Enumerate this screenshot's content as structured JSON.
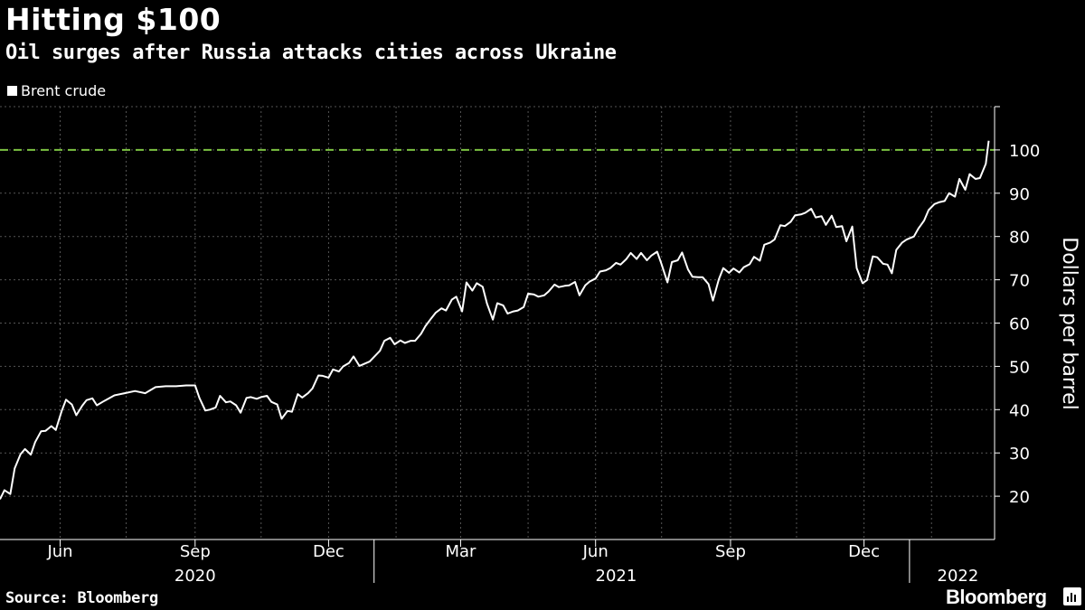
{
  "header": {
    "title": "Hitting $100",
    "subtitle": "Oil surges after Russia attacks cities across Ukraine"
  },
  "footer": {
    "source": "Source: Bloomberg",
    "brand": "Bloomberg"
  },
  "colors": {
    "background": "#000000",
    "line": "#ffffff",
    "reference_line": "#7cc242",
    "grid": "#555555"
  },
  "chart_data": {
    "type": "line",
    "title": "Hitting $100",
    "subtitle": "Oil surges after Russia attacks cities across Ukraine",
    "ylabel": "Dollars per barrel",
    "xlabel": "",
    "ylim": [
      10,
      110
    ],
    "xlim": [
      "2020-04-21",
      "2022-02-28"
    ],
    "y_ticks": [
      20,
      30,
      40,
      50,
      60,
      70,
      80,
      90,
      100
    ],
    "x_month_ticks": [
      {
        "label": "Jun",
        "date": "2020-06-01"
      },
      {
        "label": "Sep",
        "date": "2020-09-01"
      },
      {
        "label": "Dec",
        "date": "2020-12-01"
      },
      {
        "label": "Mar",
        "date": "2021-03-01"
      },
      {
        "label": "Jun",
        "date": "2021-06-01"
      },
      {
        "label": "Sep",
        "date": "2021-09-01"
      },
      {
        "label": "Dec",
        "date": "2021-12-01"
      }
    ],
    "x_year_labels": [
      {
        "label": "2020",
        "date": "2020-09-01"
      },
      {
        "label": "2021",
        "date": "2021-06-15"
      },
      {
        "label": "2022",
        "date": "2022-02-03"
      }
    ],
    "x_year_boundaries": [
      "2021-01-01",
      "2022-01-01"
    ],
    "grid": true,
    "legend_position": "top-left",
    "reference_lines": [
      {
        "y": 100,
        "style": "dashed"
      }
    ],
    "series": [
      {
        "name": "Brent crude",
        "points": [
          [
            "2020-04-21",
            19.3
          ],
          [
            "2020-04-24",
            21.4
          ],
          [
            "2020-04-28",
            20.5
          ],
          [
            "2020-05-01",
            26.4
          ],
          [
            "2020-05-05",
            29.7
          ],
          [
            "2020-05-08",
            30.9
          ],
          [
            "2020-05-12",
            29.6
          ],
          [
            "2020-05-15",
            32.5
          ],
          [
            "2020-05-19",
            35.0
          ],
          [
            "2020-05-22",
            35.1
          ],
          [
            "2020-05-26",
            36.2
          ],
          [
            "2020-05-29",
            35.3
          ],
          [
            "2020-06-02",
            39.6
          ],
          [
            "2020-06-05",
            42.3
          ],
          [
            "2020-06-09",
            41.2
          ],
          [
            "2020-06-12",
            38.7
          ],
          [
            "2020-06-16",
            40.9
          ],
          [
            "2020-06-19",
            42.2
          ],
          [
            "2020-06-23",
            42.6
          ],
          [
            "2020-06-26",
            41.0
          ],
          [
            "2020-07-01",
            42.0
          ],
          [
            "2020-07-08",
            43.3
          ],
          [
            "2020-07-15",
            43.8
          ],
          [
            "2020-07-22",
            44.3
          ],
          [
            "2020-07-29",
            43.8
          ],
          [
            "2020-08-05",
            45.2
          ],
          [
            "2020-08-12",
            45.4
          ],
          [
            "2020-08-19",
            45.4
          ],
          [
            "2020-08-26",
            45.6
          ],
          [
            "2020-09-01",
            45.6
          ],
          [
            "2020-09-04",
            42.7
          ],
          [
            "2020-09-08",
            39.8
          ],
          [
            "2020-09-11",
            40.0
          ],
          [
            "2020-09-15",
            40.5
          ],
          [
            "2020-09-18",
            43.2
          ],
          [
            "2020-09-22",
            41.7
          ],
          [
            "2020-09-25",
            41.9
          ],
          [
            "2020-09-29",
            41.0
          ],
          [
            "2020-10-02",
            39.3
          ],
          [
            "2020-10-06",
            42.7
          ],
          [
            "2020-10-09",
            42.9
          ],
          [
            "2020-10-13",
            42.5
          ],
          [
            "2020-10-16",
            42.9
          ],
          [
            "2020-10-20",
            43.2
          ],
          [
            "2020-10-23",
            41.8
          ],
          [
            "2020-10-27",
            41.2
          ],
          [
            "2020-10-30",
            37.9
          ],
          [
            "2020-11-03",
            39.7
          ],
          [
            "2020-11-06",
            39.5
          ],
          [
            "2020-11-10",
            43.6
          ],
          [
            "2020-11-13",
            42.8
          ],
          [
            "2020-11-17",
            43.8
          ],
          [
            "2020-11-20",
            44.9
          ],
          [
            "2020-11-24",
            47.9
          ],
          [
            "2020-11-27",
            47.8
          ],
          [
            "2020-12-01",
            47.4
          ],
          [
            "2020-12-04",
            49.3
          ],
          [
            "2020-12-08",
            48.8
          ],
          [
            "2020-12-11",
            50.0
          ],
          [
            "2020-12-15",
            50.8
          ],
          [
            "2020-12-18",
            52.3
          ],
          [
            "2020-12-22",
            50.1
          ],
          [
            "2020-12-29",
            51.1
          ],
          [
            "2021-01-05",
            53.6
          ],
          [
            "2021-01-08",
            55.9
          ],
          [
            "2021-01-12",
            56.6
          ],
          [
            "2021-01-15",
            55.1
          ],
          [
            "2021-01-19",
            56.0
          ],
          [
            "2021-01-22",
            55.4
          ],
          [
            "2021-01-26",
            55.9
          ],
          [
            "2021-01-29",
            55.9
          ],
          [
            "2021-02-02",
            57.5
          ],
          [
            "2021-02-05",
            59.3
          ],
          [
            "2021-02-09",
            61.1
          ],
          [
            "2021-02-12",
            62.4
          ],
          [
            "2021-02-16",
            63.4
          ],
          [
            "2021-02-19",
            62.9
          ],
          [
            "2021-02-23",
            65.4
          ],
          [
            "2021-02-26",
            66.1
          ],
          [
            "2021-03-02",
            62.7
          ],
          [
            "2021-03-05",
            69.4
          ],
          [
            "2021-03-09",
            67.5
          ],
          [
            "2021-03-12",
            69.2
          ],
          [
            "2021-03-16",
            68.4
          ],
          [
            "2021-03-19",
            64.5
          ],
          [
            "2021-03-23",
            60.8
          ],
          [
            "2021-03-26",
            64.6
          ],
          [
            "2021-03-30",
            64.1
          ],
          [
            "2021-04-02",
            62.2
          ],
          [
            "2021-04-06",
            62.7
          ],
          [
            "2021-04-09",
            62.9
          ],
          [
            "2021-04-13",
            63.7
          ],
          [
            "2021-04-16",
            66.8
          ],
          [
            "2021-04-20",
            66.6
          ],
          [
            "2021-04-23",
            66.1
          ],
          [
            "2021-04-27",
            66.4
          ],
          [
            "2021-04-30",
            67.3
          ],
          [
            "2021-05-04",
            68.9
          ],
          [
            "2021-05-07",
            68.3
          ],
          [
            "2021-05-11",
            68.6
          ],
          [
            "2021-05-14",
            68.7
          ],
          [
            "2021-05-18",
            69.5
          ],
          [
            "2021-05-21",
            66.4
          ],
          [
            "2021-05-25",
            68.7
          ],
          [
            "2021-05-28",
            69.6
          ],
          [
            "2021-06-01",
            70.3
          ],
          [
            "2021-06-04",
            71.9
          ],
          [
            "2021-06-08",
            72.2
          ],
          [
            "2021-06-11",
            72.7
          ],
          [
            "2021-06-15",
            73.9
          ],
          [
            "2021-06-18",
            73.5
          ],
          [
            "2021-06-22",
            74.8
          ],
          [
            "2021-06-25",
            76.2
          ],
          [
            "2021-06-29",
            74.8
          ],
          [
            "2021-07-02",
            76.2
          ],
          [
            "2021-07-06",
            74.5
          ],
          [
            "2021-07-09",
            75.6
          ],
          [
            "2021-07-13",
            76.5
          ],
          [
            "2021-07-16",
            73.6
          ],
          [
            "2021-07-20",
            69.4
          ],
          [
            "2021-07-23",
            74.1
          ],
          [
            "2021-07-27",
            74.5
          ],
          [
            "2021-07-30",
            76.3
          ],
          [
            "2021-08-03",
            72.4
          ],
          [
            "2021-08-06",
            70.7
          ],
          [
            "2021-08-10",
            70.6
          ],
          [
            "2021-08-13",
            70.6
          ],
          [
            "2021-08-17",
            69.0
          ],
          [
            "2021-08-20",
            65.2
          ],
          [
            "2021-08-24",
            70.1
          ],
          [
            "2021-08-27",
            72.7
          ],
          [
            "2021-08-31",
            71.6
          ],
          [
            "2021-09-03",
            72.6
          ],
          [
            "2021-09-07",
            71.7
          ],
          [
            "2021-09-10",
            72.9
          ],
          [
            "2021-09-14",
            73.6
          ],
          [
            "2021-09-17",
            75.3
          ],
          [
            "2021-09-21",
            74.4
          ],
          [
            "2021-09-24",
            78.1
          ],
          [
            "2021-09-28",
            78.6
          ],
          [
            "2021-10-01",
            79.3
          ],
          [
            "2021-10-05",
            82.6
          ],
          [
            "2021-10-08",
            82.4
          ],
          [
            "2021-10-12",
            83.4
          ],
          [
            "2021-10-15",
            84.9
          ],
          [
            "2021-10-19",
            85.1
          ],
          [
            "2021-10-22",
            85.5
          ],
          [
            "2021-10-26",
            86.4
          ],
          [
            "2021-10-29",
            84.4
          ],
          [
            "2021-11-02",
            84.7
          ],
          [
            "2021-11-05",
            82.7
          ],
          [
            "2021-11-09",
            84.8
          ],
          [
            "2021-11-12",
            82.2
          ],
          [
            "2021-11-16",
            82.4
          ],
          [
            "2021-11-19",
            78.9
          ],
          [
            "2021-11-23",
            82.3
          ],
          [
            "2021-11-26",
            72.7
          ],
          [
            "2021-11-30",
            69.2
          ],
          [
            "2021-12-03",
            69.9
          ],
          [
            "2021-12-07",
            75.4
          ],
          [
            "2021-12-10",
            75.2
          ],
          [
            "2021-12-14",
            73.7
          ],
          [
            "2021-12-17",
            73.5
          ],
          [
            "2021-12-20",
            71.5
          ],
          [
            "2021-12-23",
            76.9
          ],
          [
            "2021-12-27",
            78.6
          ],
          [
            "2021-12-30",
            79.3
          ],
          [
            "2022-01-04",
            80.0
          ],
          [
            "2022-01-07",
            81.8
          ],
          [
            "2022-01-11",
            83.7
          ],
          [
            "2022-01-14",
            86.1
          ],
          [
            "2022-01-18",
            87.5
          ],
          [
            "2022-01-21",
            87.9
          ],
          [
            "2022-01-25",
            88.2
          ],
          [
            "2022-01-28",
            90.0
          ],
          [
            "2022-02-01",
            89.2
          ],
          [
            "2022-02-04",
            93.3
          ],
          [
            "2022-02-08",
            90.8
          ],
          [
            "2022-02-11",
            94.4
          ],
          [
            "2022-02-15",
            93.3
          ],
          [
            "2022-02-18",
            93.5
          ],
          [
            "2022-02-22",
            96.8
          ],
          [
            "2022-02-24",
            102.1
          ]
        ]
      }
    ]
  }
}
